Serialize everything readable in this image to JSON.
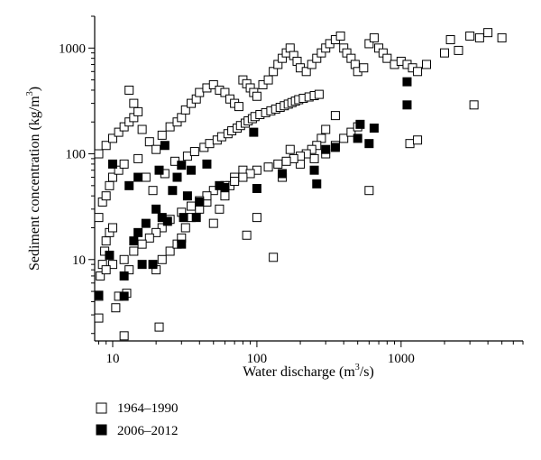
{
  "chart_data": {
    "type": "scatter",
    "title": "",
    "xlabel_main": "Water discharge (m",
    "xlabel_sup": "3",
    "xlabel_tail": "/s)",
    "ylabel_main": "Sediment concentration (kg/m",
    "ylabel_sup": "3",
    "ylabel_tail": ")",
    "xscale": "log",
    "yscale": "log",
    "xlim": [
      7.5,
      7000
    ],
    "ylim": [
      1.7,
      2000
    ],
    "x_ticks": [
      10,
      100,
      1000
    ],
    "x_tick_labels": [
      "10",
      "100",
      "1000"
    ],
    "y_ticks": [
      10,
      100,
      1000
    ],
    "y_tick_labels": [
      "10",
      "100",
      "1000"
    ],
    "grid": false,
    "legend_position": "bottom-left",
    "series": [
      {
        "name": "1964–1990",
        "marker": "open-square",
        "color": "#000000",
        "points": [
          [
            7.8,
            2.8
          ],
          [
            8,
            4.5
          ],
          [
            8.2,
            7
          ],
          [
            8.5,
            9
          ],
          [
            8.8,
            12
          ],
          [
            9,
            15
          ],
          [
            9.5,
            18
          ],
          [
            10,
            20
          ],
          [
            10.5,
            3.5
          ],
          [
            11,
            4.5
          ],
          [
            12,
            1.9
          ],
          [
            12.5,
            4.8
          ],
          [
            13,
            8
          ],
          [
            8,
            25
          ],
          [
            8.5,
            35
          ],
          [
            9,
            40
          ],
          [
            9.5,
            50
          ],
          [
            10,
            60
          ],
          [
            11,
            70
          ],
          [
            12,
            80
          ],
          [
            8,
            100
          ],
          [
            9,
            120
          ],
          [
            10,
            140
          ],
          [
            11,
            160
          ],
          [
            12,
            180
          ],
          [
            13,
            200
          ],
          [
            14,
            220
          ],
          [
            15,
            250
          ],
          [
            13,
            400
          ],
          [
            14,
            300
          ],
          [
            16,
            170
          ],
          [
            18,
            130
          ],
          [
            20,
            110
          ],
          [
            22,
            150
          ],
          [
            25,
            180
          ],
          [
            28,
            200
          ],
          [
            30,
            220
          ],
          [
            32,
            260
          ],
          [
            35,
            300
          ],
          [
            38,
            330
          ],
          [
            40,
            380
          ],
          [
            45,
            420
          ],
          [
            50,
            450
          ],
          [
            55,
            400
          ],
          [
            60,
            380
          ],
          [
            65,
            330
          ],
          [
            70,
            300
          ],
          [
            75,
            280
          ],
          [
            80,
            500
          ],
          [
            85,
            460
          ],
          [
            90,
            420
          ],
          [
            95,
            380
          ],
          [
            100,
            350
          ],
          [
            110,
            450
          ],
          [
            120,
            500
          ],
          [
            130,
            600
          ],
          [
            140,
            700
          ],
          [
            150,
            800
          ],
          [
            160,
            900
          ],
          [
            170,
            1000
          ],
          [
            180,
            850
          ],
          [
            190,
            750
          ],
          [
            200,
            650
          ],
          [
            220,
            600
          ],
          [
            240,
            700
          ],
          [
            260,
            800
          ],
          [
            280,
            900
          ],
          [
            300,
            1000
          ],
          [
            320,
            1100
          ],
          [
            350,
            1200
          ],
          [
            380,
            1300
          ],
          [
            400,
            1000
          ],
          [
            420,
            900
          ],
          [
            450,
            800
          ],
          [
            480,
            700
          ],
          [
            500,
            600
          ],
          [
            550,
            650
          ],
          [
            600,
            1100
          ],
          [
            650,
            1250
          ],
          [
            700,
            1000
          ],
          [
            750,
            900
          ],
          [
            800,
            800
          ],
          [
            900,
            700
          ],
          [
            1000,
            750
          ],
          [
            1100,
            700
          ],
          [
            1200,
            650
          ],
          [
            1300,
            600
          ],
          [
            1500,
            700
          ],
          [
            2000,
            900
          ],
          [
            2200,
            1200
          ],
          [
            2500,
            950
          ],
          [
            3000,
            1300
          ],
          [
            3500,
            1250
          ],
          [
            4000,
            1400
          ],
          [
            5000,
            1250
          ],
          [
            3200,
            290
          ],
          [
            1150,
            125
          ],
          [
            1300,
            135
          ],
          [
            600,
            45
          ],
          [
            170,
            110
          ],
          [
            20,
            8
          ],
          [
            22,
            10
          ],
          [
            25,
            12
          ],
          [
            28,
            14
          ],
          [
            30,
            16
          ],
          [
            32,
            20
          ],
          [
            35,
            25
          ],
          [
            40,
            30
          ],
          [
            45,
            35
          ],
          [
            50,
            22
          ],
          [
            55,
            30
          ],
          [
            60,
            40
          ],
          [
            65,
            50
          ],
          [
            70,
            60
          ],
          [
            80,
            70
          ],
          [
            85,
            17
          ],
          [
            100,
            25
          ],
          [
            130,
            10.5
          ],
          [
            150,
            60
          ],
          [
            200,
            80
          ],
          [
            250,
            90
          ],
          [
            300,
            100
          ],
          [
            350,
            120
          ],
          [
            400,
            140
          ],
          [
            450,
            160
          ],
          [
            500,
            180
          ],
          [
            350,
            230
          ],
          [
            300,
            170
          ],
          [
            280,
            140
          ],
          [
            260,
            120
          ],
          [
            240,
            110
          ],
          [
            220,
            100
          ],
          [
            200,
            95
          ],
          [
            180,
            90
          ],
          [
            160,
            85
          ],
          [
            140,
            80
          ],
          [
            120,
            75
          ],
          [
            100,
            70
          ],
          [
            90,
            65
          ],
          [
            80,
            60
          ],
          [
            70,
            55
          ],
          [
            60,
            50
          ],
          [
            50,
            45
          ],
          [
            45,
            40
          ],
          [
            40,
            36
          ],
          [
            35,
            32
          ],
          [
            30,
            28
          ],
          [
            25,
            24
          ],
          [
            22,
            20
          ],
          [
            20,
            18
          ],
          [
            18,
            16
          ],
          [
            16,
            14
          ],
          [
            14,
            12
          ],
          [
            12,
            10
          ],
          [
            10,
            9
          ],
          [
            9,
            8
          ],
          [
            21,
            2.3
          ],
          [
            15,
            90
          ],
          [
            17,
            60
          ],
          [
            19,
            45
          ],
          [
            23,
            65
          ],
          [
            27,
            85
          ],
          [
            33,
            95
          ],
          [
            37,
            105
          ],
          [
            43,
            115
          ],
          [
            47,
            125
          ],
          [
            53,
            135
          ],
          [
            57,
            145
          ],
          [
            63,
            155
          ],
          [
            67,
            165
          ],
          [
            73,
            175
          ],
          [
            77,
            185
          ],
          [
            83,
            195
          ],
          [
            87,
            205
          ],
          [
            93,
            215
          ],
          [
            97,
            225
          ],
          [
            105,
            235
          ],
          [
            115,
            245
          ],
          [
            125,
            255
          ],
          [
            135,
            265
          ],
          [
            145,
            275
          ],
          [
            155,
            285
          ],
          [
            165,
            295
          ],
          [
            175,
            305
          ],
          [
            185,
            315
          ],
          [
            195,
            325
          ],
          [
            210,
            335
          ],
          [
            230,
            345
          ],
          [
            250,
            355
          ],
          [
            270,
            365
          ]
        ]
      },
      {
        "name": "2006–2012",
        "marker": "filled-square",
        "color": "#000000",
        "points": [
          [
            7.8,
            4.6
          ],
          [
            9.5,
            11
          ],
          [
            10,
            80
          ],
          [
            12,
            4.5
          ],
          [
            12,
            7
          ],
          [
            13,
            50
          ],
          [
            14,
            15
          ],
          [
            15,
            18
          ],
          [
            15,
            60
          ],
          [
            16,
            9
          ],
          [
            17,
            22
          ],
          [
            19,
            9
          ],
          [
            20,
            30
          ],
          [
            21,
            70
          ],
          [
            22,
            25
          ],
          [
            23,
            120
          ],
          [
            24,
            23
          ],
          [
            26,
            45
          ],
          [
            28,
            60
          ],
          [
            30,
            78
          ],
          [
            30,
            14
          ],
          [
            31,
            25
          ],
          [
            33,
            40
          ],
          [
            35,
            70
          ],
          [
            38,
            25
          ],
          [
            40,
            35
          ],
          [
            45,
            80
          ],
          [
            55,
            50
          ],
          [
            60,
            48
          ],
          [
            95,
            160
          ],
          [
            100,
            47
          ],
          [
            150,
            65
          ],
          [
            250,
            70
          ],
          [
            260,
            52
          ],
          [
            300,
            110
          ],
          [
            350,
            115
          ],
          [
            500,
            140
          ],
          [
            520,
            190
          ],
          [
            600,
            125
          ],
          [
            650,
            175
          ],
          [
            1100,
            290
          ],
          [
            1100,
            480
          ]
        ]
      }
    ]
  }
}
